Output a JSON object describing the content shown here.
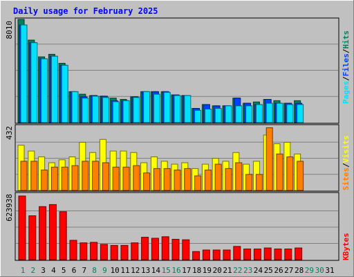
{
  "title": "Daily usage for February 2025",
  "colors": {
    "background": "#c0c0c0",
    "title": "#0000ff",
    "hits": "#00805c",
    "files": "#0040ff",
    "pages": "#00e0ff",
    "visits": "#ffff00",
    "sites": "#ff8000",
    "kbytes": "#ff0000",
    "day_label_weekday": "#000000",
    "day_label_weekend": "#00805c"
  },
  "chart_data": [
    {
      "type": "bar",
      "name": "top",
      "ymax_label": "8010",
      "ylim": [
        0,
        8010
      ],
      "grid": true,
      "categories": [
        "1",
        "2",
        "3",
        "4",
        "5",
        "6",
        "7",
        "8",
        "9",
        "10",
        "11",
        "12",
        "13",
        "14",
        "15",
        "16",
        "17",
        "18",
        "19",
        "20",
        "21",
        "22",
        "23",
        "24",
        "25",
        "26",
        "27",
        "28",
        "29",
        "30",
        "31"
      ],
      "legend": [
        "Pages",
        "/",
        "Files",
        "/",
        "Hits"
      ],
      "series": [
        {
          "name": "Hits",
          "values": [
            8010,
            6400,
            5100,
            5300,
            4600,
            2400,
            2200,
            2100,
            2050,
            1900,
            1800,
            2000,
            2400,
            2400,
            2400,
            2150,
            2100,
            1100,
            1400,
            1300,
            1300,
            1900,
            1500,
            1600,
            1800,
            1700,
            1500,
            1700,
            0,
            0,
            0
          ]
        },
        {
          "name": "Files",
          "values": [
            7580,
            6200,
            4950,
            5150,
            4450,
            2400,
            2000,
            2100,
            2050,
            1700,
            1700,
            2000,
            2400,
            2400,
            2400,
            2150,
            2100,
            1100,
            1400,
            1300,
            1300,
            1900,
            1500,
            1400,
            1800,
            1500,
            1500,
            1500,
            0,
            0,
            0
          ]
        },
        {
          "name": "Pages",
          "values": [
            7580,
            6200,
            4950,
            5150,
            4450,
            2400,
            1900,
            2050,
            1950,
            1620,
            1700,
            1950,
            2400,
            2200,
            2350,
            2100,
            2100,
            950,
            1050,
            1100,
            1300,
            1300,
            1300,
            1400,
            1500,
            1500,
            1400,
            1400,
            0,
            0,
            0
          ]
        }
      ]
    },
    {
      "type": "bar",
      "name": "middle",
      "ymax_label": "432",
      "ylim": [
        0,
        432
      ],
      "grid": true,
      "legend": [
        "Sites",
        "/",
        "Visits"
      ],
      "series": [
        {
          "name": "Visits",
          "values": [
            310,
            270,
            230,
            190,
            210,
            230,
            330,
            260,
            350,
            270,
            270,
            260,
            190,
            230,
            200,
            180,
            190,
            150,
            180,
            220,
            200,
            260,
            180,
            200,
            380,
            320,
            330,
            250,
            0,
            0,
            0
          ]
        },
        {
          "name": "Sites",
          "values": [
            200,
            200,
            140,
            160,
            160,
            170,
            200,
            200,
            190,
            160,
            160,
            170,
            120,
            150,
            150,
            140,
            150,
            100,
            140,
            180,
            150,
            190,
            110,
            110,
            430,
            250,
            230,
            200,
            0,
            0,
            0
          ]
        }
      ]
    },
    {
      "type": "bar",
      "name": "bottom",
      "ymax_label": "623938",
      "ylim": [
        0,
        623938
      ],
      "grid": true,
      "legend": [
        "KBytes"
      ],
      "series": [
        {
          "name": "KBytes",
          "values": [
            623938,
            430000,
            520000,
            540000,
            470000,
            190000,
            165000,
            170000,
            150000,
            140000,
            140000,
            165000,
            220000,
            210000,
            225000,
            200000,
            195000,
            80000,
            95000,
            95000,
            95000,
            130000,
            105000,
            105000,
            115000,
            105000,
            105000,
            115000,
            0,
            0,
            0
          ]
        }
      ]
    }
  ]
}
